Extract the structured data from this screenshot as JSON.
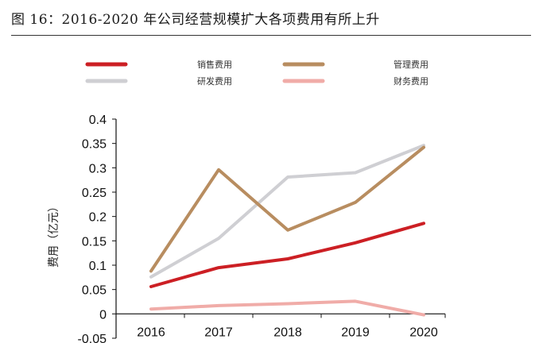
{
  "header": {
    "title": "图 16：2016-2020 年公司经营规模扩大各项费用有所上升"
  },
  "chart_data": {
    "type": "line",
    "title": "",
    "xlabel": "",
    "ylabel": "费用（亿元）",
    "categories": [
      "2016",
      "2017",
      "2018",
      "2019",
      "2020"
    ],
    "ylim": [
      -0.05,
      0.4
    ],
    "yticks": [
      -0.05,
      0,
      0.05,
      0.1,
      0.15,
      0.2,
      0.25,
      0.3,
      0.35,
      0.4
    ],
    "ytick_labels": [
      "-0.05",
      "0",
      "0.05",
      "0.1",
      "0.15",
      "0.2",
      "0.25",
      "0.3",
      "0.35",
      "0.4"
    ],
    "grid": false,
    "legend_position": "top",
    "series": [
      {
        "name": "销售费用",
        "color": "#cc1f24",
        "values": [
          0.056,
          0.095,
          0.113,
          0.146,
          0.186
        ]
      },
      {
        "name": "管理费用",
        "color": "#b88d60",
        "values": [
          0.088,
          0.296,
          0.172,
          0.229,
          0.342
        ]
      },
      {
        "name": "研发费用",
        "color": "#cfcfd3",
        "values": [
          0.076,
          0.155,
          0.281,
          0.29,
          0.346
        ]
      },
      {
        "name": "财务费用",
        "color": "#f0aca8",
        "values": [
          0.01,
          0.017,
          0.021,
          0.026,
          -0.002
        ]
      }
    ]
  }
}
